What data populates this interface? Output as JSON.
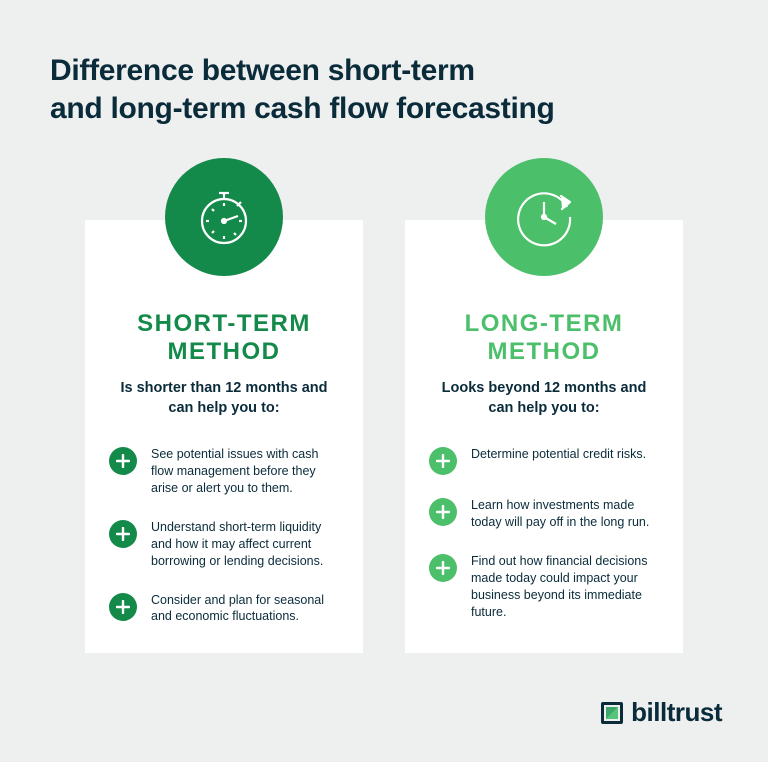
{
  "colors": {
    "bg": "#eeefef",
    "card_bg": "#ffffff",
    "text_dark": "#0a2b3a",
    "short_primary": "#148a4a",
    "long_primary": "#4cbf6b"
  },
  "title": "Difference between short-term\nand long-term cash flow forecasting",
  "cards": [
    {
      "icon": "stopwatch",
      "icon_bg": "#148a4a",
      "heading_color": "#148a4a",
      "heading": "SHORT-TERM METHOD",
      "sub": "Is shorter than 12 months and can help you to:",
      "bullet_bg": "#148a4a",
      "bullets": [
        "See potential issues with cash flow management before they arise or alert you to them.",
        "Understand short-term liquidity and how it may affect current borrowing or lending decisions.",
        "Consider and plan for seasonal and economic fluctuations."
      ]
    },
    {
      "icon": "cycle-clock",
      "icon_bg": "#4cbf6b",
      "heading_color": "#4cbf6b",
      "heading": "LONG-TERM METHOD",
      "sub": "Looks beyond 12 months and can help you to:",
      "bullet_bg": "#4cbf6b",
      "bullets": [
        "Determine potential credit risks.",
        "Learn how investments made today will pay off in the long run.",
        "Find out how financial decisions made today could impact your business beyond its immediate future."
      ]
    }
  ],
  "footer": {
    "brand": "billtrust"
  }
}
